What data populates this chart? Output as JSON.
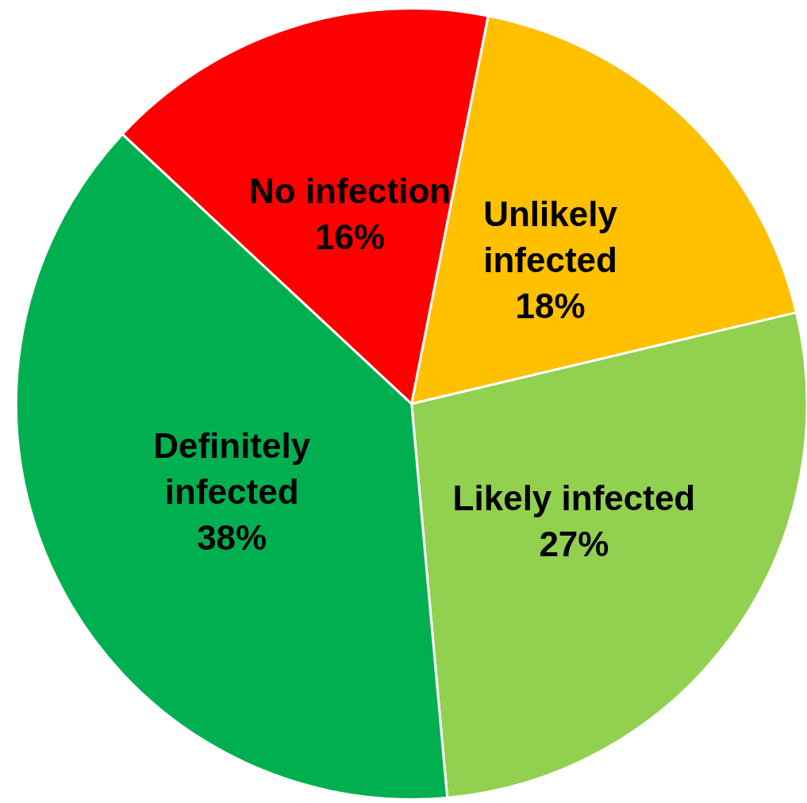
{
  "chart_data": {
    "type": "pie",
    "categories": [
      "No infection",
      "Unlikely infected",
      "Likely infected",
      "Definitely infected"
    ],
    "values": [
      16,
      18,
      27,
      38
    ],
    "value_labels": [
      "16%",
      "18%",
      "27%",
      "38%"
    ],
    "colors": [
      "#ff0000",
      "#ffc000",
      "#92d050",
      "#00b050"
    ]
  }
}
